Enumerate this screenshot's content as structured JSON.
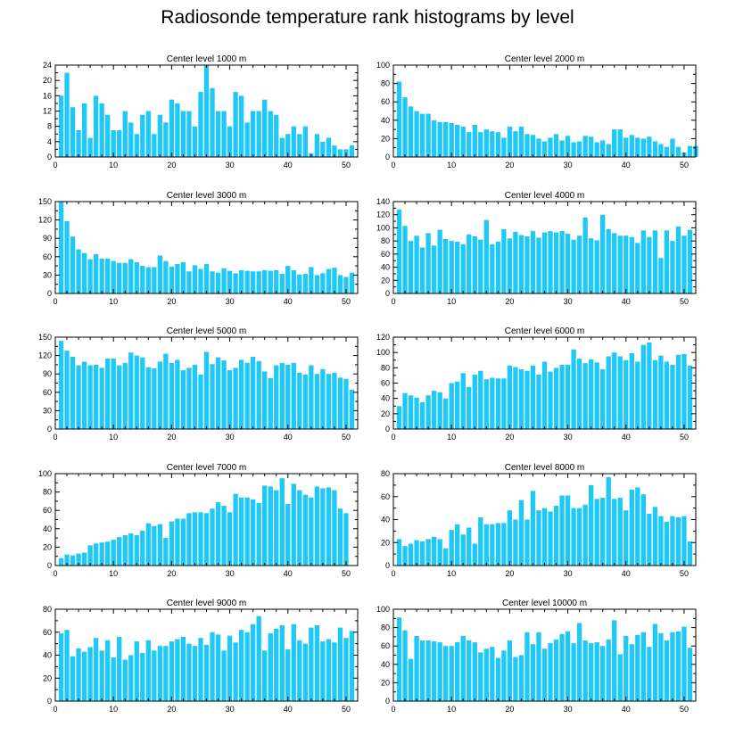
{
  "title": "Radiosonde temperature rank histograms by level",
  "colors": {
    "bar": "#1ec8f7",
    "axis": "#000000"
  },
  "chart_data": [
    {
      "type": "bar",
      "title": "Center level 1000 m",
      "xlim": [
        0,
        52
      ],
      "ylim": [
        0,
        24
      ],
      "xticks": [
        0,
        10,
        20,
        30,
        40,
        50
      ],
      "yticks": [
        0,
        4,
        8,
        12,
        16,
        20,
        24
      ],
      "values": [
        16,
        22,
        13,
        7,
        14,
        5,
        16,
        14,
        11,
        7,
        7,
        12,
        9,
        6,
        11,
        12,
        6,
        11,
        9,
        15,
        14,
        12,
        12,
        8,
        17,
        24,
        18,
        12,
        12,
        8,
        17,
        16,
        9,
        12,
        12,
        15,
        12,
        11,
        5,
        6,
        8,
        6,
        8,
        1,
        6,
        4,
        5,
        3,
        2,
        2,
        3
      ]
    },
    {
      "type": "bar",
      "title": "Center level 2000 m",
      "xlim": [
        0,
        52
      ],
      "ylim": [
        0,
        100
      ],
      "xticks": [
        0,
        10,
        20,
        30,
        40,
        50
      ],
      "yticks": [
        0,
        20,
        40,
        60,
        80,
        100
      ],
      "values": [
        82,
        65,
        55,
        50,
        47,
        47,
        40,
        38,
        38,
        37,
        35,
        33,
        27,
        35,
        27,
        30,
        28,
        27,
        21,
        33,
        28,
        33,
        25,
        24,
        20,
        17,
        21,
        25,
        18,
        23,
        16,
        17,
        23,
        22,
        16,
        18,
        14,
        30,
        30,
        21,
        24,
        21,
        20,
        22,
        17,
        14,
        11,
        20,
        11,
        5,
        12,
        12
      ]
    },
    {
      "type": "bar",
      "title": "Center level 3000 m",
      "xlim": [
        0,
        52
      ],
      "ylim": [
        0,
        150
      ],
      "xticks": [
        0,
        10,
        20,
        30,
        40,
        50
      ],
      "yticks": [
        0,
        30,
        60,
        90,
        120,
        150
      ],
      "values": [
        150,
        118,
        93,
        72,
        66,
        56,
        64,
        57,
        57,
        53,
        50,
        50,
        56,
        51,
        45,
        43,
        43,
        62,
        53,
        44,
        48,
        51,
        36,
        46,
        40,
        48,
        36,
        34,
        41,
        37,
        33,
        38,
        37,
        36,
        36,
        38,
        37,
        38,
        32,
        45,
        38,
        31,
        32,
        43,
        30,
        33,
        40,
        42,
        30,
        27,
        34
      ]
    },
    {
      "type": "bar",
      "title": "Center level 4000 m",
      "xlim": [
        0,
        52
      ],
      "ylim": [
        0,
        140
      ],
      "xticks": [
        0,
        10,
        20,
        30,
        40,
        50
      ],
      "yticks": [
        0,
        20,
        40,
        60,
        80,
        100,
        120,
        140
      ],
      "values": [
        128,
        103,
        80,
        88,
        70,
        92,
        73,
        97,
        83,
        80,
        79,
        75,
        90,
        87,
        82,
        112,
        75,
        79,
        98,
        84,
        94,
        89,
        87,
        95,
        85,
        93,
        95,
        93,
        95,
        91,
        82,
        88,
        116,
        84,
        81,
        120,
        98,
        92,
        88,
        88,
        86,
        77,
        96,
        86,
        96,
        54,
        96,
        80,
        102,
        88,
        97
      ]
    },
    {
      "type": "bar",
      "title": "Center level 5000 m",
      "xlim": [
        0,
        52
      ],
      "ylim": [
        0,
        150
      ],
      "xticks": [
        0,
        10,
        20,
        30,
        40,
        50
      ],
      "yticks": [
        0,
        30,
        60,
        90,
        120,
        150
      ],
      "values": [
        144,
        128,
        118,
        104,
        110,
        104,
        105,
        100,
        115,
        115,
        104,
        108,
        125,
        120,
        117,
        101,
        99,
        110,
        123,
        108,
        113,
        96,
        100,
        105,
        89,
        126,
        106,
        117,
        112,
        96,
        100,
        113,
        108,
        118,
        111,
        94,
        83,
        104,
        108,
        105,
        108,
        92,
        89,
        104,
        90,
        98,
        90,
        92,
        84,
        82,
        64
      ]
    },
    {
      "type": "bar",
      "title": "Center level 6000 m",
      "xlim": [
        0,
        52
      ],
      "ylim": [
        0,
        120
      ],
      "xticks": [
        0,
        10,
        20,
        30,
        40,
        50
      ],
      "yticks": [
        0,
        20,
        40,
        60,
        80,
        100,
        120
      ],
      "values": [
        30,
        47,
        44,
        41,
        35,
        44,
        50,
        48,
        40,
        60,
        62,
        73,
        55,
        71,
        76,
        65,
        67,
        66,
        66,
        83,
        81,
        78,
        76,
        83,
        71,
        88,
        75,
        80,
        84,
        84,
        104,
        92,
        86,
        91,
        87,
        78,
        95,
        100,
        95,
        90,
        99,
        88,
        110,
        113,
        90,
        96,
        88,
        84,
        97,
        98,
        83
      ]
    },
    {
      "type": "bar",
      "title": "Center level 7000 m",
      "xlim": [
        0,
        52
      ],
      "ylim": [
        0,
        100
      ],
      "xticks": [
        0,
        10,
        20,
        30,
        40,
        50
      ],
      "yticks": [
        0,
        20,
        40,
        60,
        80,
        100
      ],
      "values": [
        8,
        12,
        11,
        13,
        14,
        22,
        24,
        25,
        26,
        28,
        31,
        33,
        35,
        33,
        38,
        46,
        43,
        45,
        30,
        48,
        51,
        51,
        57,
        58,
        58,
        57,
        62,
        69,
        65,
        58,
        78,
        74,
        74,
        72,
        68,
        87,
        86,
        82,
        95,
        67,
        89,
        82,
        77,
        74,
        86,
        84,
        85,
        82,
        62,
        57
      ]
    },
    {
      "type": "bar",
      "title": "Center level 8000 m",
      "xlim": [
        0,
        52
      ],
      "ylim": [
        0,
        80
      ],
      "xticks": [
        0,
        10,
        20,
        30,
        40,
        50
      ],
      "yticks": [
        0,
        20,
        40,
        60,
        80
      ],
      "values": [
        23,
        17,
        19,
        22,
        21,
        23,
        25,
        23,
        15,
        31,
        36,
        27,
        33,
        19,
        42,
        36,
        36,
        37,
        37,
        48,
        40,
        57,
        40,
        65,
        48,
        50,
        47,
        52,
        61,
        61,
        50,
        50,
        53,
        70,
        58,
        59,
        77,
        58,
        59,
        48,
        66,
        68,
        62,
        45,
        51,
        43,
        38,
        43,
        42,
        43,
        21
      ]
    },
    {
      "type": "bar",
      "title": "Center level 9000 m",
      "xlim": [
        0,
        52
      ],
      "ylim": [
        0,
        80
      ],
      "xticks": [
        0,
        10,
        20,
        30,
        40,
        50
      ],
      "yticks": [
        0,
        20,
        40,
        60,
        80
      ],
      "values": [
        59,
        62,
        39,
        46,
        43,
        47,
        55,
        44,
        53,
        38,
        56,
        36,
        40,
        52,
        42,
        53,
        44,
        48,
        48,
        52,
        54,
        56,
        50,
        48,
        55,
        49,
        60,
        58,
        44,
        57,
        51,
        62,
        60,
        67,
        74,
        44,
        59,
        63,
        66,
        45,
        67,
        53,
        50,
        64,
        66,
        52,
        54,
        51,
        64,
        55,
        61
      ]
    },
    {
      "type": "bar",
      "title": "Center level 10000 m",
      "xlim": [
        0,
        52
      ],
      "ylim": [
        0,
        100
      ],
      "xticks": [
        0,
        10,
        20,
        30,
        40,
        50
      ],
      "yticks": [
        0,
        20,
        40,
        60,
        80,
        100
      ],
      "values": [
        91,
        77,
        46,
        71,
        66,
        66,
        65,
        64,
        60,
        60,
        64,
        71,
        66,
        64,
        53,
        57,
        59,
        47,
        55,
        66,
        48,
        50,
        75,
        62,
        75,
        57,
        63,
        67,
        73,
        76,
        63,
        85,
        66,
        63,
        64,
        60,
        67,
        88,
        51,
        71,
        62,
        72,
        75,
        59,
        84,
        74,
        66,
        75,
        76,
        81,
        58
      ]
    }
  ]
}
